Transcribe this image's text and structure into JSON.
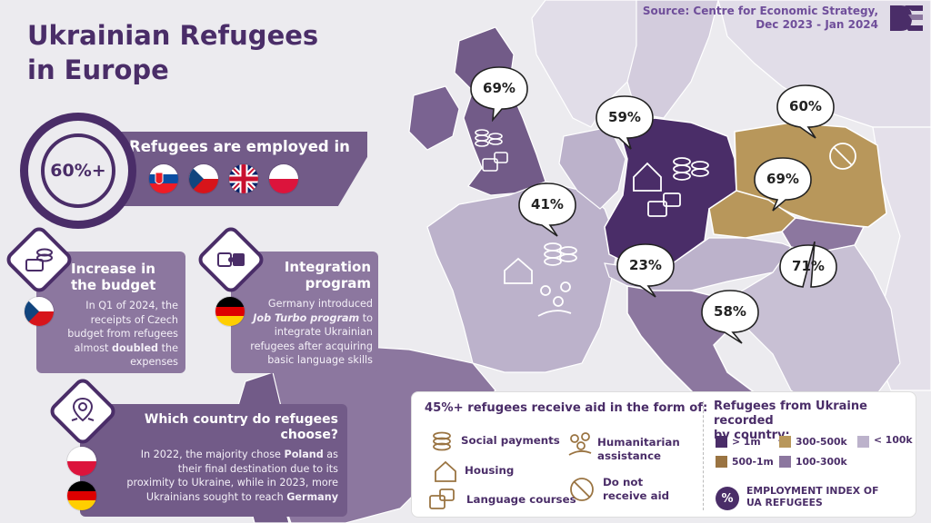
{
  "header": {
    "title_line1": "Ukrainian Refugees",
    "title_line2": "in Europe",
    "source_line1": "Source: Centre for Economic Strategy,",
    "source_line2": "Dec 2023 - Jan 2024",
    "logo_icon": "ces-logo-icon"
  },
  "employment": {
    "stat": "60%+",
    "label": "Refugees are employed in",
    "flags": [
      "slovakia-flag-icon",
      "czechia-flag-icon",
      "uk-flag-icon",
      "poland-flag-icon"
    ]
  },
  "budget_card": {
    "title": "Increase in the budget",
    "line1": "In Q1 of 2024, the",
    "line2": "receipts of Czech",
    "line3": "budget from refugees",
    "line4_pre": "almost ",
    "line4_bold": "doubled",
    "line4_post": " the",
    "line5": "expenses",
    "flag": "czechia-flag-icon"
  },
  "integration_card": {
    "title_line1": "Integration",
    "title_line2": "program",
    "line1": "Germany introduced",
    "line2_bold": "Job Turbo program",
    "line2_post": " to",
    "line3": "integrate Ukrainian",
    "line4": "refugees after acquiring",
    "line5": "basic language skills",
    "flag": "germany-flag-icon"
  },
  "destination_card": {
    "title_line1": "Which country do refugees",
    "title_line2": "choose?",
    "line1_pre": "In 2022, the majority chose ",
    "line1_bold": "Poland",
    "line1_post": " as",
    "line2": "their final destination due to its",
    "line3": "proximity to Ukraine, while in 2023, more",
    "line4_pre": "Ukrainians sought to reach ",
    "line4_bold": "Germany",
    "flags": [
      "poland-flag-icon",
      "germany-flag-icon"
    ]
  },
  "map_labels": {
    "uk": "69%",
    "germany": "59%",
    "poland": "60%",
    "czechia": "69%",
    "france": "41%",
    "switzerland": "23%",
    "slovakia": "71%",
    "italy": "58%"
  },
  "aid_legend": {
    "title": "45%+ refugees receive aid in the form of:",
    "items": {
      "social": "Social payments",
      "housing": "Housing",
      "language": "Language courses",
      "humanitarian_line1": "Humanitarian",
      "humanitarian_line2": "assistance",
      "noaid_line1": "Do not",
      "noaid_line2": "receive aid"
    }
  },
  "recorded_legend": {
    "title_line1": "Refugees from Ukraine recorded",
    "title_line2": "by country:",
    "bins": [
      {
        "label": "> 1m",
        "color": "#4a2d68"
      },
      {
        "label": "300-500k",
        "color": "#b8975b"
      },
      {
        "label": "< 100k",
        "color": "#bcb2cb"
      },
      {
        "label": "500-1m",
        "color": "#9a7442"
      },
      {
        "label": "100-300k",
        "color": "#8c779f"
      }
    ],
    "index_badge": "%",
    "index_line1": "EMPLOYMENT INDEX OF",
    "index_line2": "UA REFUGEES"
  },
  "colors": {
    "dark_purple": "#4a2d68",
    "mid_purple": "#725b88",
    "light_purple": "#bcb2cb",
    "gold": "#b8975b",
    "brown": "#9a7442",
    "background": "#ecebef"
  }
}
